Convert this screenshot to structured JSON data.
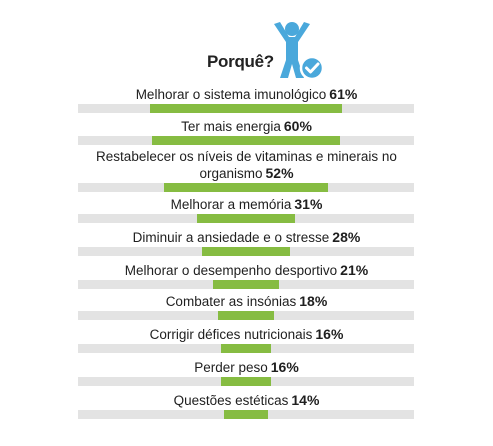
{
  "colors": {
    "bar_fill": "#86bc42",
    "bar_track": "#e3e3e3",
    "icon": "#4aa8db"
  },
  "header": {
    "title": "Porquê?",
    "icon": "person-check-icon"
  },
  "chart_data": {
    "type": "bar",
    "orientation": "horizontal-centered",
    "title": "Porquê?",
    "xlabel": "",
    "ylabel": "",
    "unit": "%",
    "xlim": [
      0,
      100
    ],
    "grid": false,
    "legend": "none",
    "categories": [
      "Melhorar o sistema imunológico",
      "Ter mais energia",
      "Restabelecer os níveis de vitaminas e minerais no organismo",
      "Melhorar a memória",
      "Diminuir a ansiedade e o stresse",
      "Melhorar o desempenho desportivo",
      "Combater as insónias",
      "Corrigir défices nutricionais",
      "Perder peso",
      "Questões estéticas"
    ],
    "values": [
      61,
      60,
      52,
      31,
      28,
      21,
      18,
      16,
      16,
      14
    ],
    "value_labels": [
      "61%",
      "60%",
      "52%",
      "31%",
      "28%",
      "21%",
      "18%",
      "16%",
      "16%",
      "14%"
    ]
  }
}
